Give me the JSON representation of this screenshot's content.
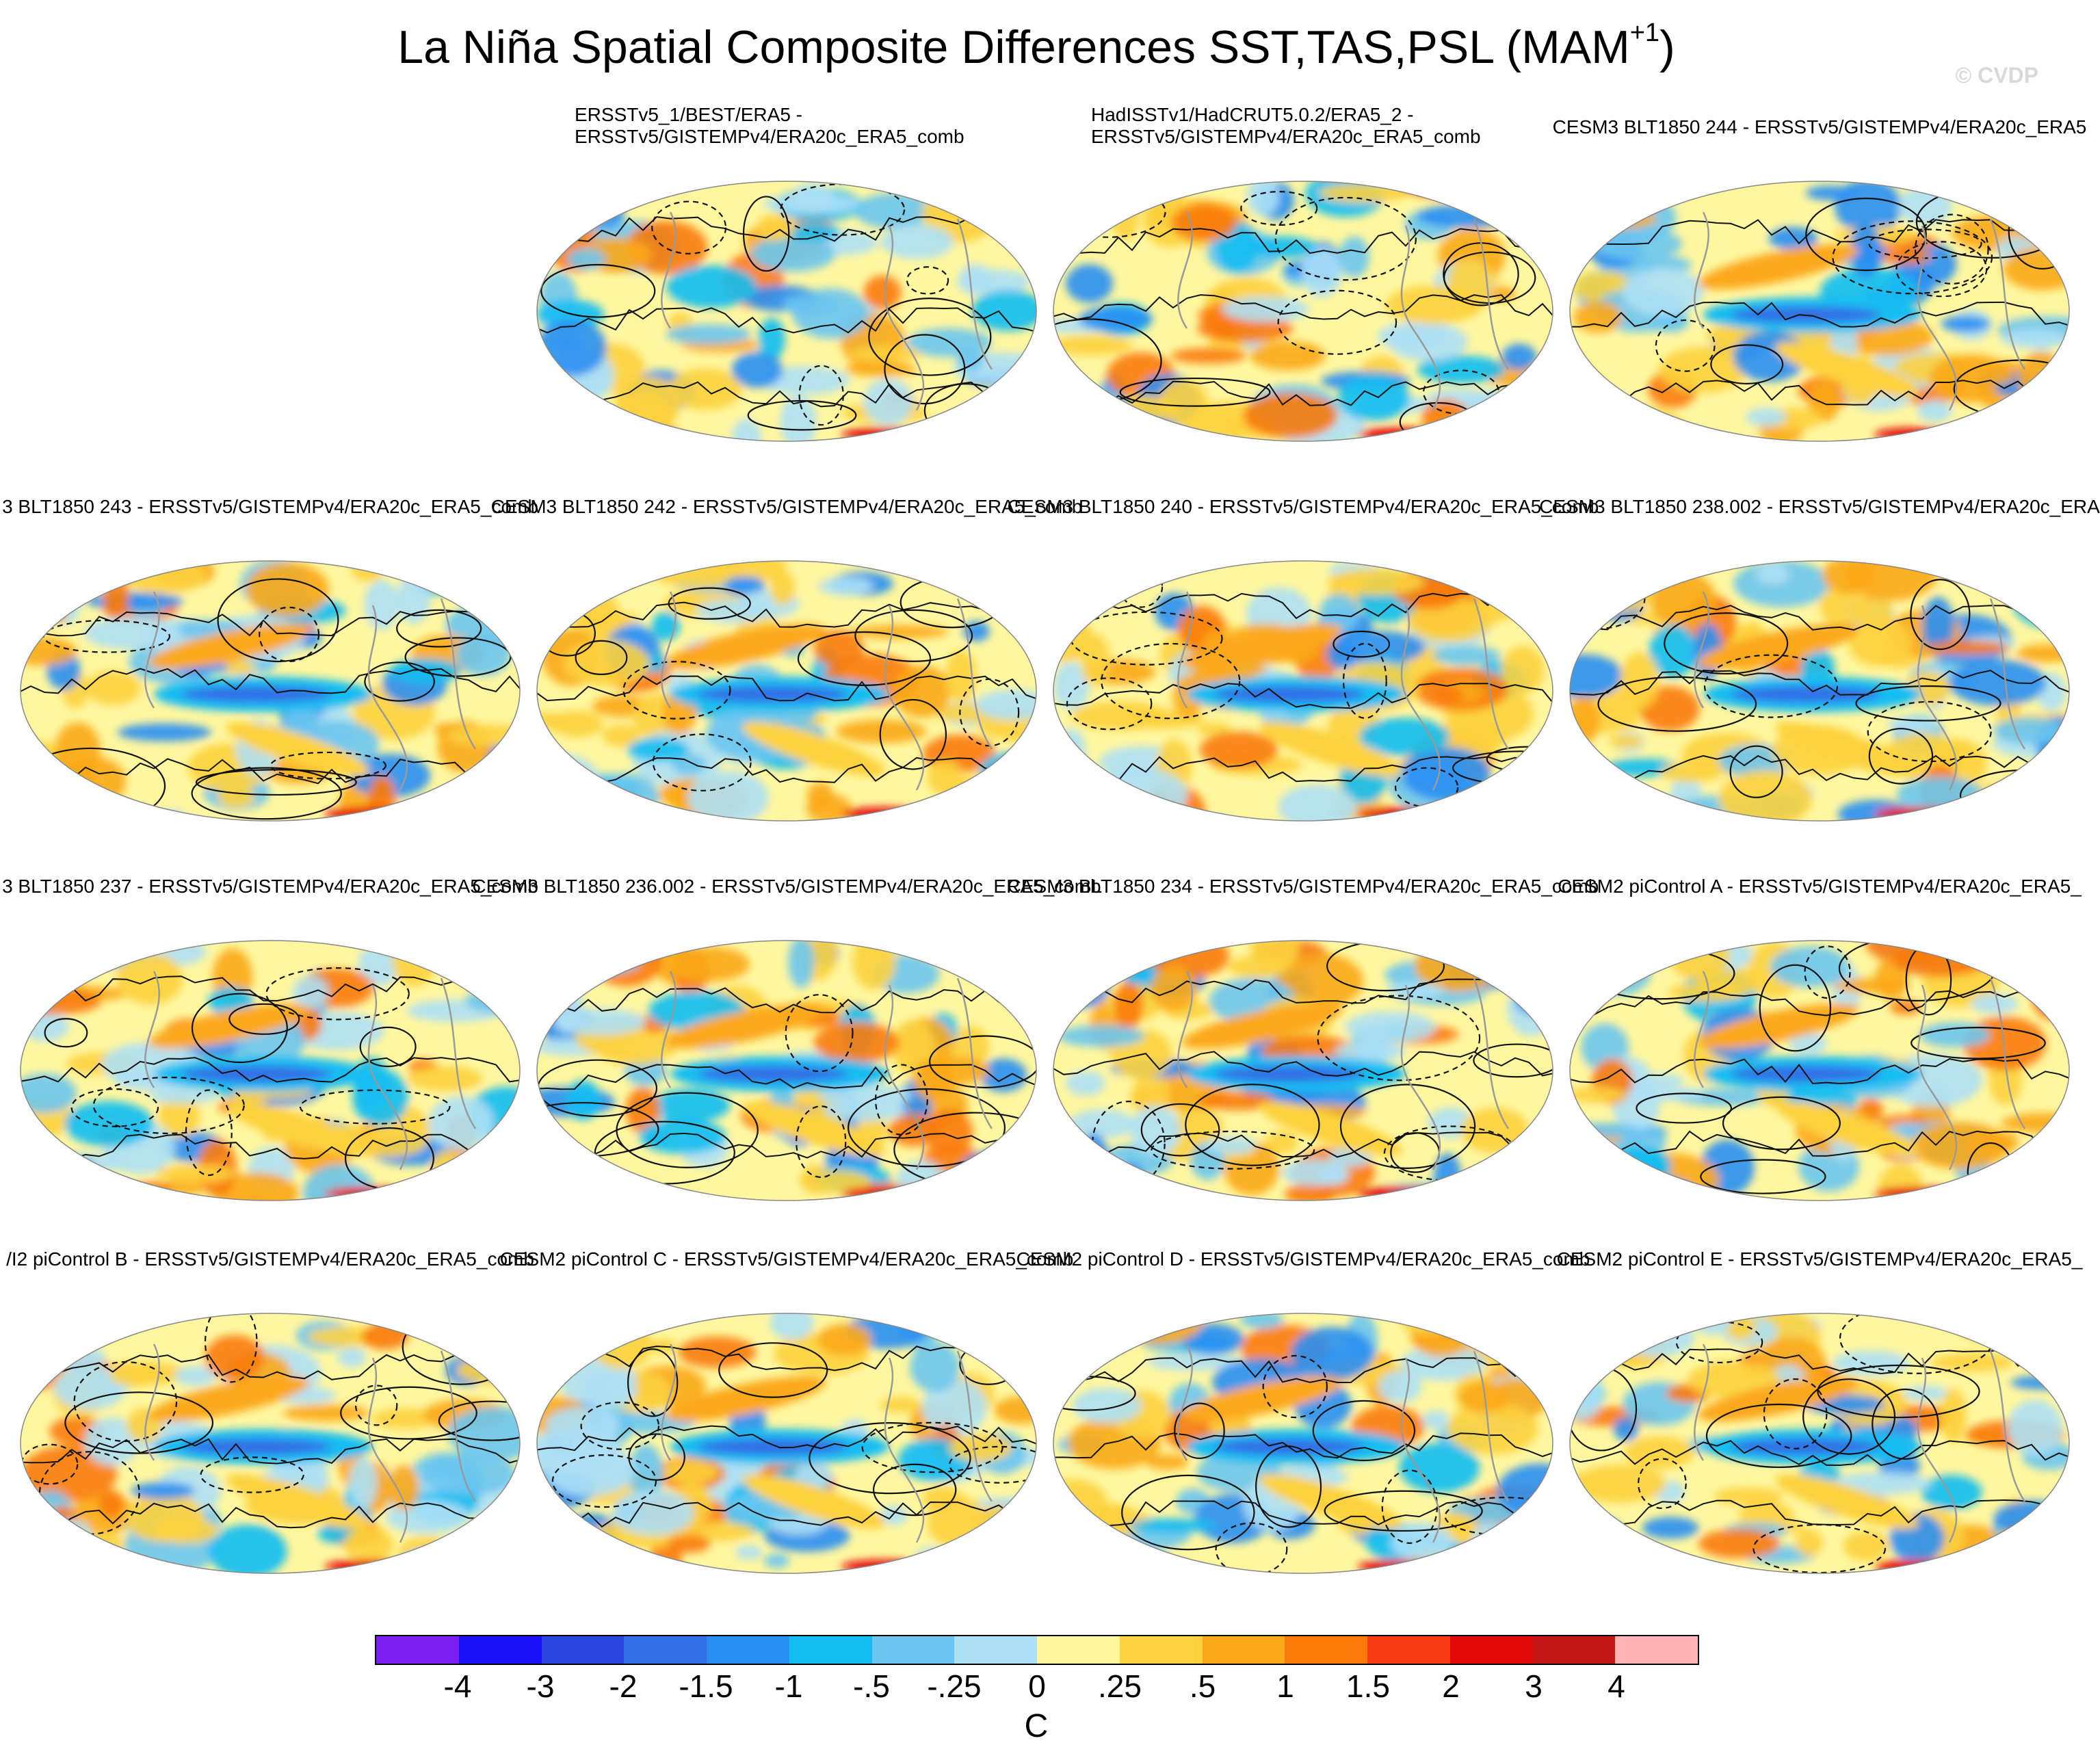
{
  "title": {
    "main": "La Niña Spatial Composite Differences SST,TAS,PSL (MAM",
    "sup": "+1",
    "close": ")"
  },
  "watermark": "© CVDP",
  "panels": [
    {
      "id": "p1",
      "title": "ERSSTv5_1/BEST/ERA5 -\nERSSTv5/GISTEMPv4/ERA20c_ERA5_comb",
      "pattern": "obs"
    },
    {
      "id": "p2",
      "title": "HadISSTv1/HadCRUT5.0.2/ERA5_2 -\nERSSTv5/GISTEMPv4/ERA20c_ERA5_comb",
      "pattern": "obs"
    },
    {
      "id": "p3",
      "title": "CESM3 BLT1850 244 - ERSSTv5/GISTEMPv4/ERA20c_ERA5",
      "pattern": "model"
    },
    {
      "id": "p4",
      "title": "3 BLT1850 243 - ERSSTv5/GISTEMPv4/ERA20c_ERA5_comb",
      "pattern": "model"
    },
    {
      "id": "p5",
      "title": "CESM3 BLT1850 242 - ERSSTv5/GISTEMPv4/ERA20c_ERA5_comb",
      "pattern": "model"
    },
    {
      "id": "p6",
      "title": "CESM3 BLT1850 240 - ERSSTv5/GISTEMPv4/ERA20c_ERA5_comb",
      "pattern": "model"
    },
    {
      "id": "p7",
      "title": "CESM3 BLT1850 238.002 - ERSSTv5/GISTEMPv4/ERA20c_ERA",
      "pattern": "model"
    },
    {
      "id": "p8",
      "title": "3 BLT1850 237 - ERSSTv5/GISTEMPv4/ERA20c_ERA5_comb",
      "pattern": "model"
    },
    {
      "id": "p9",
      "title": "CESM3 BLT1850 236.002 - ERSSTv5/GISTEMPv4/ERA20c_ERA5_comb",
      "pattern": "model"
    },
    {
      "id": "p10",
      "title": "CESM3 BLT1850 234 - ERSSTv5/GISTEMPv4/ERA20c_ERA5_comb",
      "pattern": "model"
    },
    {
      "id": "p11",
      "title": "CESM2 piControl A - ERSSTv5/GISTEMPv4/ERA20c_ERA5_",
      "pattern": "model"
    },
    {
      "id": "p12",
      "title": "/I2 piControl B - ERSSTv5/GISTEMPv4/ERA20c_ERA5_comb",
      "pattern": "model"
    },
    {
      "id": "p13",
      "title": "CESM2 piControl C - ERSSTv5/GISTEMPv4/ERA20c_ERA5_comb",
      "pattern": "model"
    },
    {
      "id": "p14",
      "title": "CESM2 piControl D - ERSSTv5/GISTEMPv4/ERA20c_ERA5_comb",
      "pattern": "model"
    },
    {
      "id": "p15",
      "title": "CESM2 piControl E - ERSSTv5/GISTEMPv4/ERA20c_ERA5_",
      "pattern": "model"
    }
  ],
  "colorbar": {
    "unit": "C",
    "colors": [
      "#7b1ff0",
      "#1a10f5",
      "#2a45e0",
      "#3170e6",
      "#2a8ff2",
      "#13bdf2",
      "#6cc5f0",
      "#aee0f5",
      "#fff7a0",
      "#fdd23e",
      "#fba81a",
      "#fa7b0a",
      "#f73b12",
      "#e50a0a",
      "#c41818",
      "#ffb3b3"
    ],
    "labels": [
      "-4",
      "-3",
      "-2",
      "-1.5",
      "-1",
      "-.5",
      "-.25",
      "0",
      ".25",
      ".5",
      "1",
      "1.5",
      "2",
      "3",
      "4"
    ]
  }
}
